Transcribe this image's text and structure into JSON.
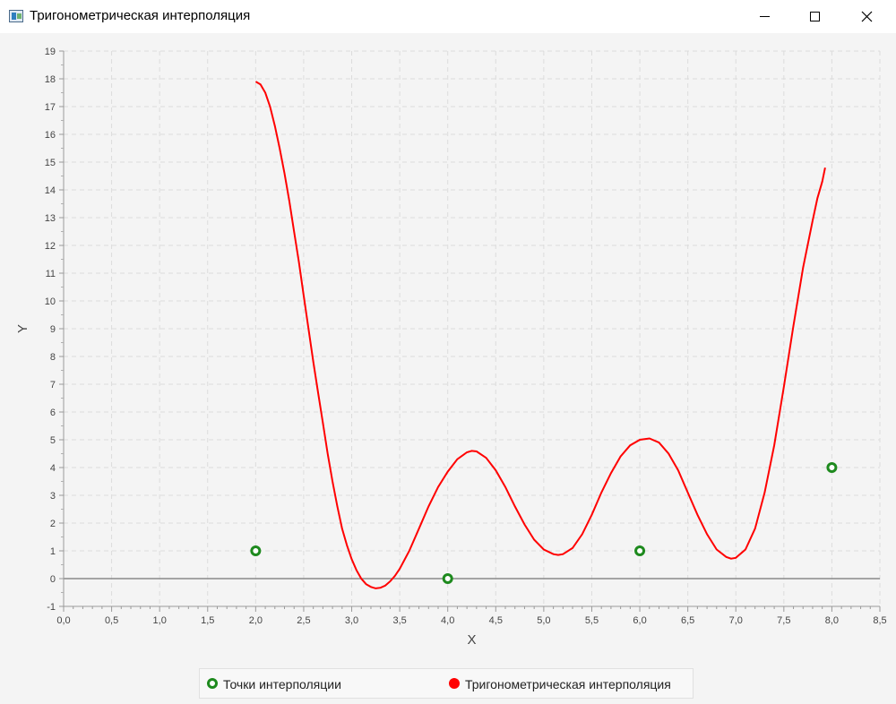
{
  "window": {
    "title": "Тригонометрическая интерполяция",
    "icon": "app-window-icon",
    "controls": [
      "minimize-icon",
      "maximize-icon",
      "close-icon"
    ]
  },
  "chart_data": {
    "type": "line",
    "title": "",
    "xlabel": "X",
    "ylabel": "Y",
    "xlim": [
      0,
      8.5
    ],
    "ylim": [
      -1,
      19
    ],
    "x_major_step": 0.5,
    "x_minor_step": 0.1,
    "y_step": 1,
    "grid": true,
    "decimal_separator": ",",
    "x_tick_labels": [
      "0,0",
      "0,5",
      "1,0",
      "1,5",
      "2,0",
      "2,5",
      "3,0",
      "3,5",
      "4,0",
      "4,5",
      "5,0",
      "5,5",
      "6,0",
      "6,5",
      "7,0",
      "7,5",
      "8,0",
      "8,5"
    ],
    "y_tick_labels": [
      "-1",
      "0",
      "1",
      "2",
      "3",
      "4",
      "5",
      "6",
      "7",
      "8",
      "9",
      "10",
      "11",
      "12",
      "13",
      "14",
      "15",
      "16",
      "17",
      "18",
      "19"
    ],
    "legend_position": "bottom-center",
    "series": [
      {
        "name": "Точки интерполяции",
        "kind": "scatter",
        "marker": "hollow-circle",
        "color": "#1e8a1e",
        "points": [
          [
            2.0,
            1.0
          ],
          [
            4.0,
            0.0
          ],
          [
            6.0,
            1.0
          ],
          [
            8.0,
            4.0
          ]
        ]
      },
      {
        "name": "Тригонометрическая интерполяция",
        "kind": "line",
        "color": "#ff0000",
        "points": [
          [
            2.0,
            17.9
          ],
          [
            2.05,
            17.8
          ],
          [
            2.1,
            17.5
          ],
          [
            2.15,
            17.0
          ],
          [
            2.2,
            16.3
          ],
          [
            2.25,
            15.5
          ],
          [
            2.3,
            14.6
          ],
          [
            2.35,
            13.6
          ],
          [
            2.4,
            12.5
          ],
          [
            2.45,
            11.4
          ],
          [
            2.5,
            10.2
          ],
          [
            2.55,
            9.0
          ],
          [
            2.6,
            7.8
          ],
          [
            2.65,
            6.7
          ],
          [
            2.7,
            5.6
          ],
          [
            2.75,
            4.5
          ],
          [
            2.8,
            3.5
          ],
          [
            2.85,
            2.6
          ],
          [
            2.9,
            1.8
          ],
          [
            2.95,
            1.2
          ],
          [
            3.0,
            0.7
          ],
          [
            3.05,
            0.3
          ],
          [
            3.1,
            0.0
          ],
          [
            3.15,
            -0.2
          ],
          [
            3.2,
            -0.3
          ],
          [
            3.25,
            -0.35
          ],
          [
            3.3,
            -0.33
          ],
          [
            3.35,
            -0.25
          ],
          [
            3.4,
            -0.1
          ],
          [
            3.45,
            0.1
          ],
          [
            3.5,
            0.35
          ],
          [
            3.6,
            1.0
          ],
          [
            3.7,
            1.8
          ],
          [
            3.8,
            2.6
          ],
          [
            3.9,
            3.3
          ],
          [
            4.0,
            3.85
          ],
          [
            4.1,
            4.3
          ],
          [
            4.2,
            4.55
          ],
          [
            4.25,
            4.6
          ],
          [
            4.3,
            4.58
          ],
          [
            4.4,
            4.35
          ],
          [
            4.5,
            3.9
          ],
          [
            4.6,
            3.3
          ],
          [
            4.7,
            2.6
          ],
          [
            4.8,
            1.95
          ],
          [
            4.9,
            1.4
          ],
          [
            5.0,
            1.05
          ],
          [
            5.1,
            0.88
          ],
          [
            5.15,
            0.85
          ],
          [
            5.2,
            0.88
          ],
          [
            5.3,
            1.1
          ],
          [
            5.4,
            1.6
          ],
          [
            5.5,
            2.3
          ],
          [
            5.6,
            3.1
          ],
          [
            5.7,
            3.8
          ],
          [
            5.8,
            4.4
          ],
          [
            5.9,
            4.8
          ],
          [
            6.0,
            5.0
          ],
          [
            6.1,
            5.05
          ],
          [
            6.2,
            4.9
          ],
          [
            6.3,
            4.5
          ],
          [
            6.4,
            3.9
          ],
          [
            6.5,
            3.1
          ],
          [
            6.6,
            2.3
          ],
          [
            6.7,
            1.6
          ],
          [
            6.8,
            1.05
          ],
          [
            6.9,
            0.78
          ],
          [
            6.95,
            0.72
          ],
          [
            7.0,
            0.75
          ],
          [
            7.1,
            1.05
          ],
          [
            7.2,
            1.8
          ],
          [
            7.3,
            3.1
          ],
          [
            7.4,
            4.8
          ],
          [
            7.5,
            6.9
          ],
          [
            7.6,
            9.1
          ],
          [
            7.7,
            11.2
          ],
          [
            7.8,
            12.9
          ],
          [
            7.85,
            13.7
          ],
          [
            7.9,
            14.3
          ],
          [
            7.93,
            14.8
          ]
        ]
      }
    ]
  }
}
